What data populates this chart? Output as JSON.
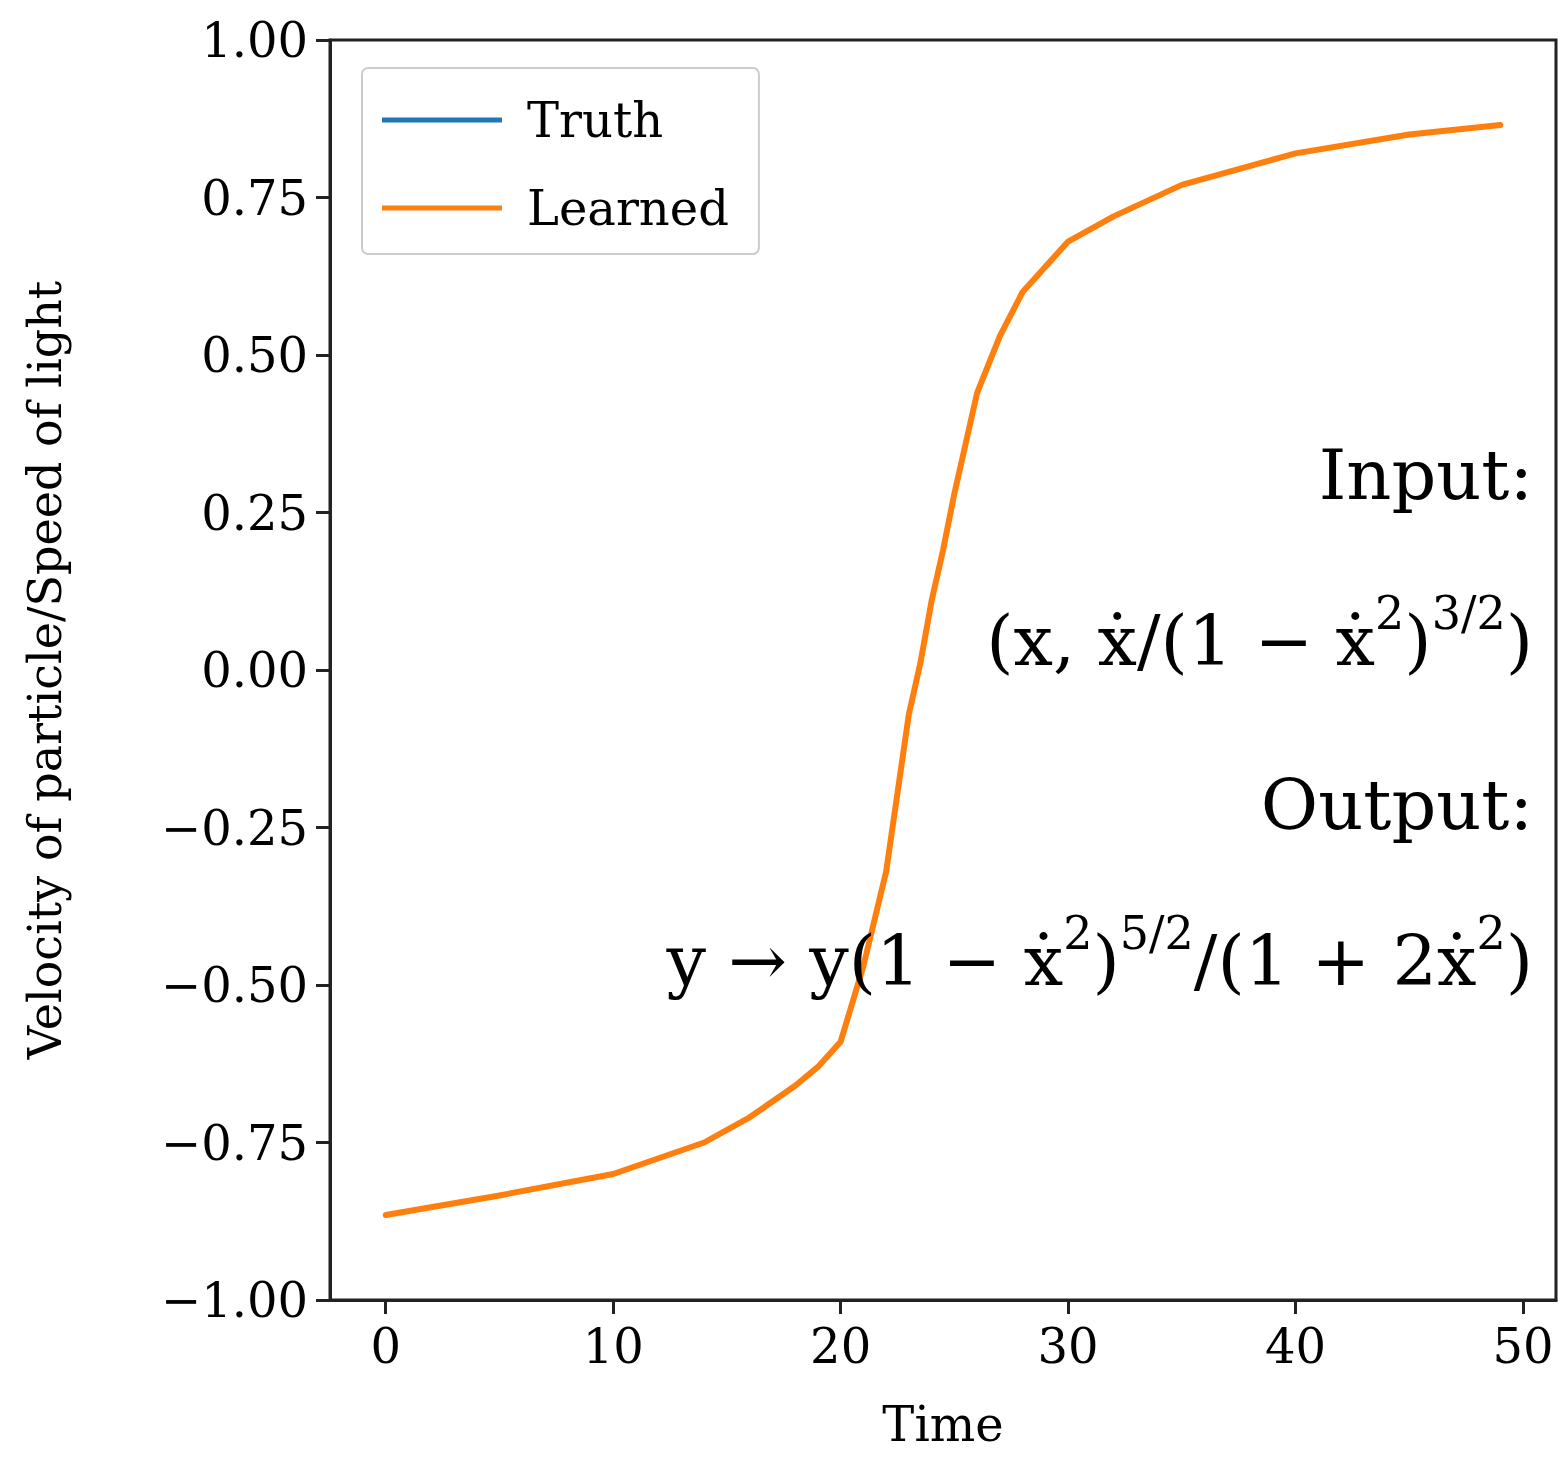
{
  "chart_data": {
    "type": "line",
    "xlabel": "Time",
    "ylabel": "Velocity of particle/Speed of light",
    "x": [
      0,
      5,
      10,
      14,
      16,
      18,
      19,
      20,
      21,
      22,
      23,
      23.5,
      24,
      24.5,
      25,
      26,
      27,
      28,
      30,
      32,
      35,
      40,
      45,
      49
    ],
    "series": [
      {
        "name": "Truth",
        "color": "#1f77b4",
        "values": [
          null,
          null,
          null,
          null,
          null,
          null,
          null,
          null,
          null,
          null,
          null,
          null,
          null,
          null,
          null,
          null,
          null,
          null,
          null,
          null,
          null,
          null,
          null,
          null
        ]
      },
      {
        "name": "Learned",
        "color": "#ff7f0e",
        "values": [
          -0.865,
          -0.834,
          -0.8,
          -0.75,
          -0.71,
          -0.66,
          -0.63,
          -0.59,
          -0.47,
          -0.32,
          -0.07,
          0.01,
          0.11,
          0.19,
          0.28,
          0.44,
          0.53,
          0.6,
          0.68,
          0.72,
          0.77,
          0.82,
          0.85,
          0.865
        ]
      }
    ],
    "xlim": [
      -2.45,
      51.45
    ],
    "xticks": [
      0,
      10,
      20,
      30,
      40,
      50
    ],
    "ylim": [
      -1,
      1
    ],
    "yticks": [
      {
        "value": -1,
        "label": "−1.00"
      },
      {
        "value": -0.75,
        "label": "−0.75"
      },
      {
        "value": -0.5,
        "label": "−0.50"
      },
      {
        "value": -0.25,
        "label": "−0.25"
      },
      {
        "value": 0,
        "label": "0.00"
      },
      {
        "value": 0.25,
        "label": "0.25"
      },
      {
        "value": 0.5,
        "label": "0.50"
      },
      {
        "value": 0.75,
        "label": "0.75"
      },
      {
        "value": 1,
        "label": "1.00"
      }
    ],
    "legend": "top left",
    "marker": "none",
    "line_style": "solid",
    "annotations": [
      "Input:",
      "(x, ẋ/(1 − ẋ$^{2}$)$^{3/2}$)",
      "Output:",
      "y → y(1 − ẋ$^{2}$)$^{5/2}$/(1 + 2ẋ$^{2}$)"
    ]
  }
}
